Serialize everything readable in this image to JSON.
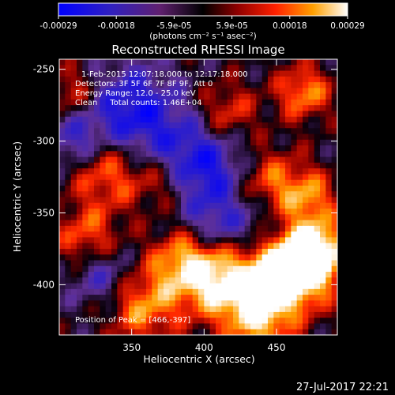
{
  "colorbar": {
    "ticks": [
      "-0.00029",
      "-0.00018",
      "-5.9e-05",
      "5.9e-05",
      "0.00018",
      "0.00029"
    ],
    "unit_label": "(photons cm⁻² s⁻¹ asec⁻²)"
  },
  "annotations": {
    "time_range": "1-Feb-2015 12:07:18.000 to 12:17:18.000",
    "detectors": "Detectors: 3F 5F 6F 7F 8F 9F, Att 0",
    "energy_range": "Energy Range: 12.0 - 25.0 keV",
    "clean_counts": "Clean     Total counts: 1.46E+04",
    "peak": "Position of Peak = [466,-397]"
  },
  "footer": {
    "date": "27-Jul-2017 22:21"
  },
  "colors": {
    "background": "#000000",
    "text": "#ffffff"
  },
  "chart_data": {
    "type": "heatmap",
    "title": "Reconstructed RHESSI Image",
    "xlabel": "Heliocentric X (arcsec)",
    "ylabel": "Heliocentric Y (arcsec)",
    "xlim": [
      300,
      492
    ],
    "ylim": [
      -435,
      -243
    ],
    "xticks": [
      350,
      400,
      450
    ],
    "yticks": [
      -250,
      -300,
      -350,
      -400
    ],
    "colorbar_range": [
      -0.00029,
      0.00029
    ],
    "colormap": [
      "#0000ff",
      "#2020c0",
      "#503080",
      "#000000",
      "#800000",
      "#ff4000",
      "#ffa000",
      "#ffffff"
    ],
    "peak_position": [
      466,
      -397
    ],
    "grid": false,
    "legend": "none"
  }
}
